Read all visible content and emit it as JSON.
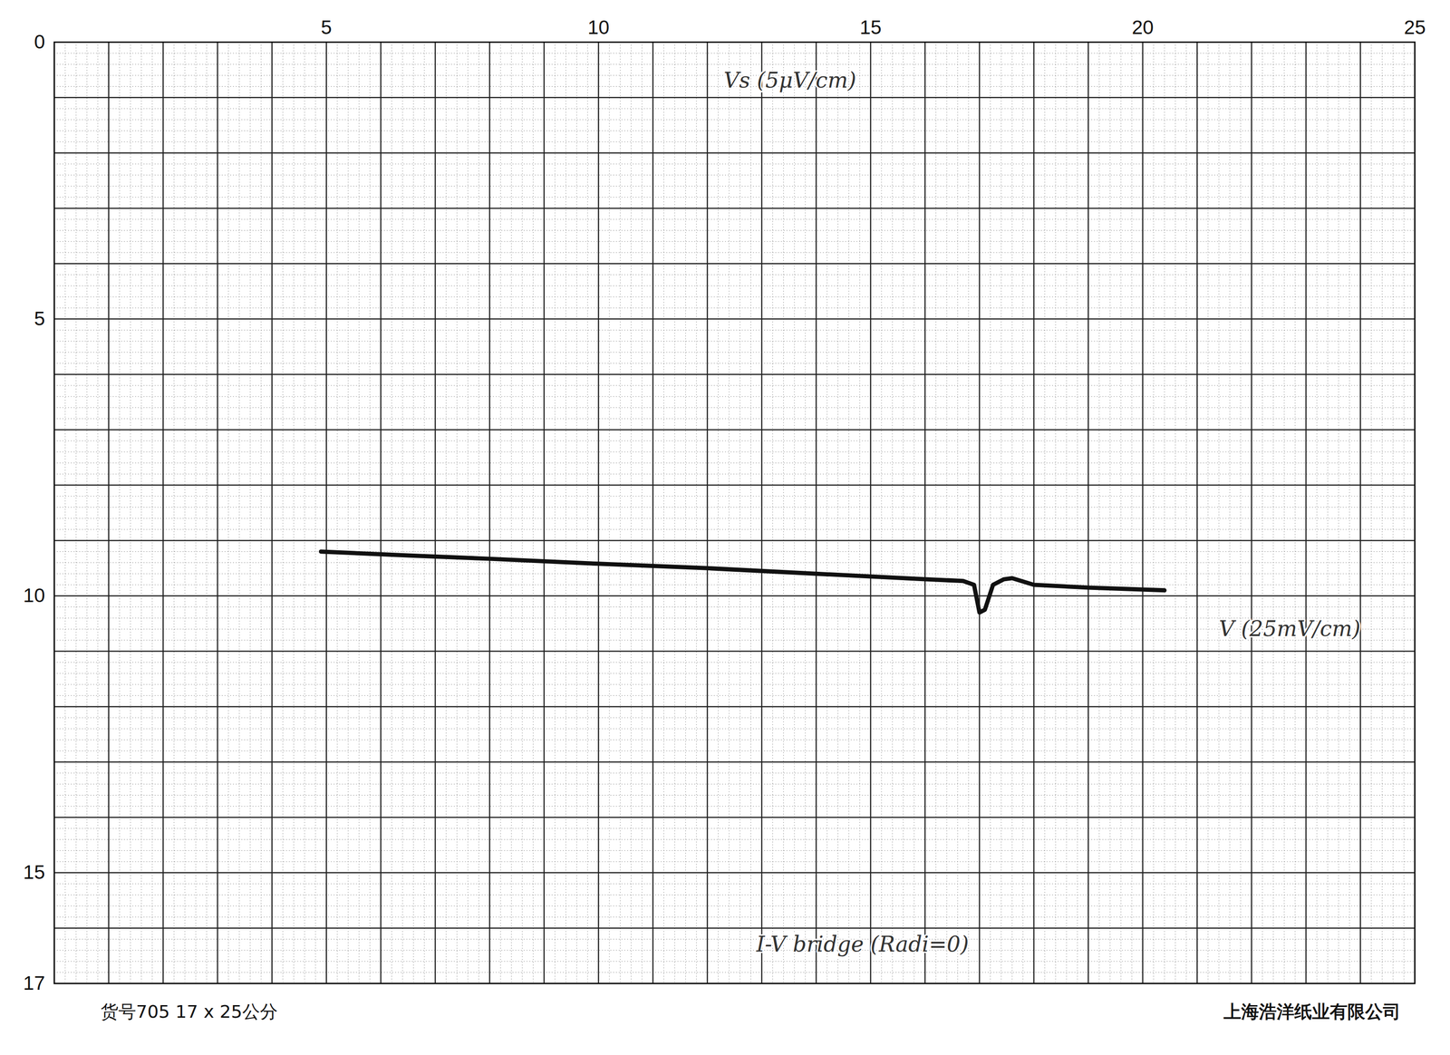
{
  "chart_data": {
    "type": "line",
    "x": [
      4.9,
      6.5,
      8,
      10,
      12,
      14,
      16,
      16.7,
      16.9,
      17.0,
      17.1,
      17.25,
      17.45,
      17.6,
      18,
      19,
      20.4
    ],
    "values": [
      9.2,
      9.27,
      9.33,
      9.42,
      9.5,
      9.6,
      9.7,
      9.73,
      9.8,
      10.3,
      10.25,
      9.8,
      9.7,
      9.68,
      9.8,
      9.85,
      9.9
    ],
    "color": "#111111",
    "xlim": [
      0,
      25
    ],
    "xticks": [
      5,
      10,
      15,
      20,
      25
    ],
    "ylim": [
      0,
      17
    ],
    "yticks": [
      0,
      5,
      10,
      15,
      17
    ],
    "grid": true,
    "annotations": [
      {
        "text": "Vs (5μV/cm)",
        "x": 12.3,
        "y": 0.7
      },
      {
        "text": "V (25mV/cm)",
        "x": 21.4,
        "y": 10.6
      },
      {
        "text": "I-V bridge (Radi=0)",
        "x": 12.9,
        "y": 16.3
      }
    ],
    "footer": [
      "货号705  17 x 25公分",
      "上海浩洋纸业有限公司"
    ]
  }
}
